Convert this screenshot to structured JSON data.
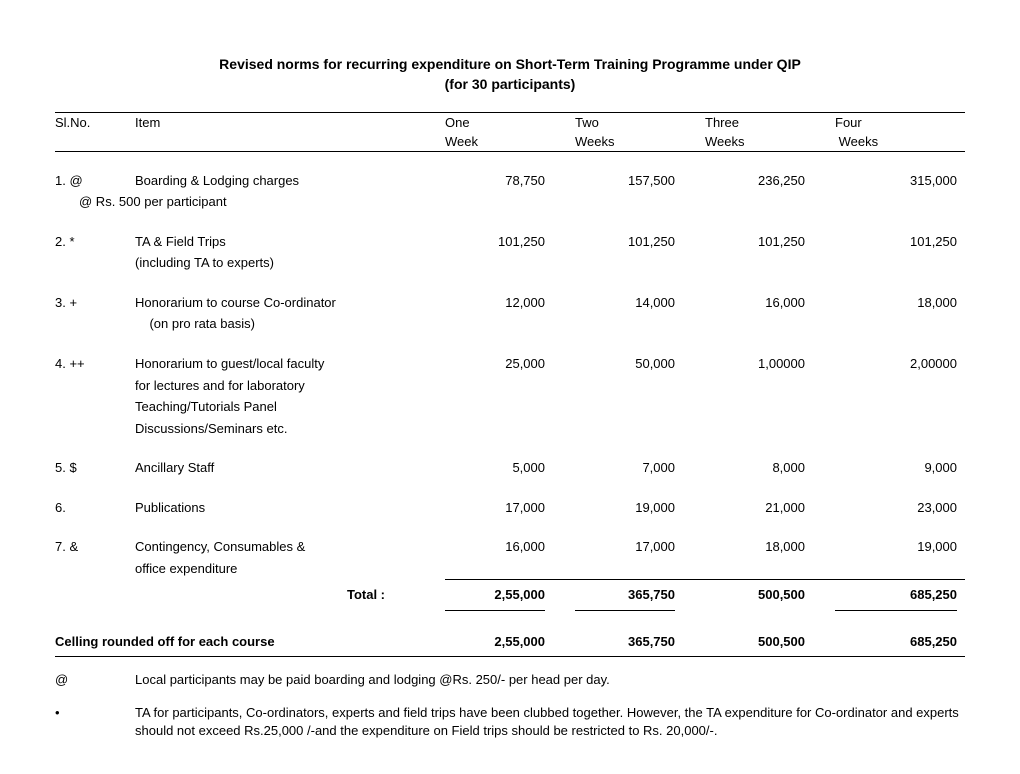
{
  "title_line1": "Revised norms for recurring expenditure on Short-Term Training Programme under QIP",
  "title_line2": "(for 30 participants)",
  "header": {
    "slno": "Sl.No.",
    "item": "Item",
    "c1a": "One",
    "c1b": "Week",
    "c2a": "Two",
    "c2b": "Weeks",
    "c3a": "Three",
    "c3b": "Weeks",
    "c4a": "Four",
    "c4b": "Weeks"
  },
  "rows": [
    {
      "slno": "1. @",
      "item": "Boarding & Lodging charges",
      "sub": "@ Rs. 500 per participant",
      "v1": "78,750",
      "v2": "157,500",
      "v3": "236,250",
      "v4": "315,000"
    },
    {
      "slno": "2. *",
      "item": "TA & Field Trips",
      "sub": "(including TA to experts)",
      "v1": "101,250",
      "v2": "101,250",
      "v3": "101,250",
      "v4": "101,250"
    },
    {
      "slno": "3. +",
      "item": "Honorarium to course Co-ordinator",
      "sub": "   (on pro rata  basis)",
      "v1": "12,000",
      "v2": "14,000",
      "v3": "16,000",
      "v4": "18,000"
    },
    {
      "slno": "4. ++",
      "item": "Honorarium to guest/local faculty",
      "sub_lines": [
        "for lectures and for laboratory",
        "Teaching/Tutorials Panel",
        "Discussions/Seminars etc."
      ],
      "v1": "25,000",
      "v2": "50,000",
      "v3": "1,00000",
      "v4": "2,00000"
    },
    {
      "slno": "5. $",
      "item": "Ancillary Staff",
      "v1": "5,000",
      "v2": "7,000",
      "v3": "8,000",
      "v4": "9,000"
    },
    {
      "slno": "6.",
      "item": "Publications",
      "v1": "17,000",
      "v2": "19,000",
      "v3": "21,000",
      "v4": "23,000"
    },
    {
      "slno": "7. &",
      "item": "Contingency, Consumables &",
      "sub": "office expenditure",
      "v1": "16,000",
      "v2": "17,000",
      "v3": "18,000",
      "v4": "19,000"
    }
  ],
  "total_label": "Total :",
  "total": {
    "v1": "2,55,000",
    "v2": "365,750",
    "v3": "500,500",
    "v4": "685,250"
  },
  "ceiling_label": "Celling rounded off for each course",
  "ceiling": {
    "v1": "2,55,000",
    "v2": "365,750",
    "v3": "500,500",
    "v4": "685,250"
  },
  "notes": [
    {
      "sym": "@",
      "text": "Local participants may be paid boarding and lodging @Rs. 250/- per head per day."
    },
    {
      "sym": "•",
      "text": "TA for participants, Co-ordinators, experts and field trips have been clubbed together. However, the TA expenditure for Co-ordinator and experts should not exceed Rs.25,000 /-and the expenditure on Field trips should be restricted to Rs. 20,000/-."
    }
  ]
}
